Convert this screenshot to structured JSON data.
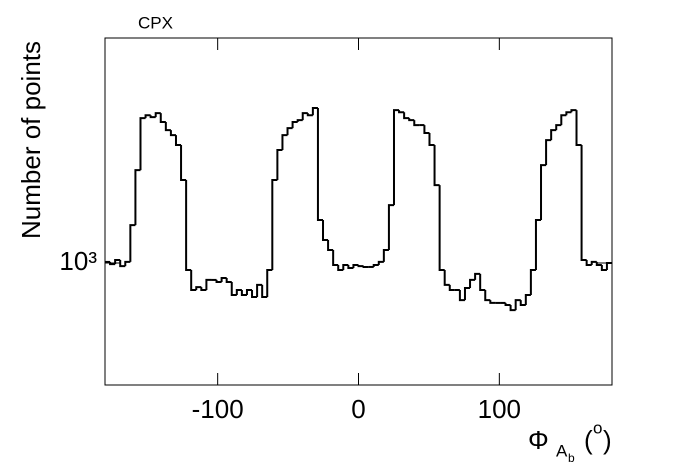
{
  "chart_data": {
    "type": "histogram",
    "title": "CPX",
    "y_label": "Number of points",
    "x_label": {
      "symbol": "Φ",
      "sub": "A",
      "subsub": "b",
      "unit_open": "(",
      "unit": "o",
      "unit_close": ")"
    },
    "xlim": [
      -180,
      180
    ],
    "xticks": [
      -100,
      0,
      100
    ],
    "ylim": [
      570,
      2820
    ],
    "yticks": [
      {
        "value": 1000,
        "label": "10³"
      }
    ],
    "log_y": true,
    "color": "#000000",
    "bins": [
      -180,
      -176.4,
      -172.8,
      -169.2,
      -165.6,
      -162,
      -158.4,
      -154.8,
      -151.2,
      -147.6,
      -144,
      -140.4,
      -136.8,
      -133.2,
      -129.6,
      -126,
      -122.4,
      -118.8,
      -115.2,
      -111.6,
      -108,
      -104.4,
      -100.8,
      -97.2,
      -93.6,
      -90,
      -86.4,
      -82.8,
      -79.2,
      -75.6,
      -72,
      -68.4,
      -64.8,
      -61.2,
      -57.6,
      -54,
      -50.4,
      -46.8,
      -43.2,
      -39.6,
      -36,
      -32.4,
      -28.8,
      -25.2,
      -21.6,
      -18,
      -14.4,
      -10.8,
      -7.2,
      -3.6,
      0,
      3.6,
      7.2,
      10.8,
      14.4,
      18,
      21.6,
      25.2,
      28.8,
      32.4,
      36,
      39.6,
      43.2,
      46.8,
      50.4,
      54,
      57.6,
      61.2,
      64.8,
      68.4,
      72,
      75.6,
      79.2,
      82.8,
      86.4,
      90,
      93.6,
      97.2,
      100.8,
      104.4,
      108,
      111.6,
      115.2,
      118.8,
      122.4,
      126,
      129.6,
      133.2,
      136.8,
      140.4,
      144,
      147.6,
      151.2,
      154.8,
      158.4,
      162,
      165.6,
      169.2,
      172.8,
      176.4,
      180
    ],
    "values": [
      1005,
      995,
      1014,
      986,
      1005,
      1191,
      1534,
      1950,
      1976,
      1959,
      1995,
      1915,
      1845,
      1803,
      1722,
      1466,
      968,
      883,
      895,
      883,
      925,
      925,
      916,
      933,
      916,
      863,
      883,
      863,
      883,
      855,
      904,
      855,
      968,
      1466,
      1683,
      1803,
      1862,
      1915,
      1932,
      1995,
      1976,
      2042,
      1219,
      1112,
      1062,
      991,
      968,
      991,
      977,
      991,
      986,
      982,
      982,
      991,
      1005,
      1062,
      1306,
      2023,
      2003,
      1950,
      1932,
      1888,
      1888,
      1820,
      1722,
      1432,
      968,
      904,
      883,
      883,
      843,
      891,
      925,
      951,
      883,
      843,
      832,
      832,
      832,
      824,
      805,
      843,
      824,
      863,
      968,
      1219,
      1570,
      1762,
      1845,
      1888,
      1976,
      2003,
      2023,
      1722,
      1014,
      991,
      1005,
      991,
      968,
      1000
    ]
  }
}
